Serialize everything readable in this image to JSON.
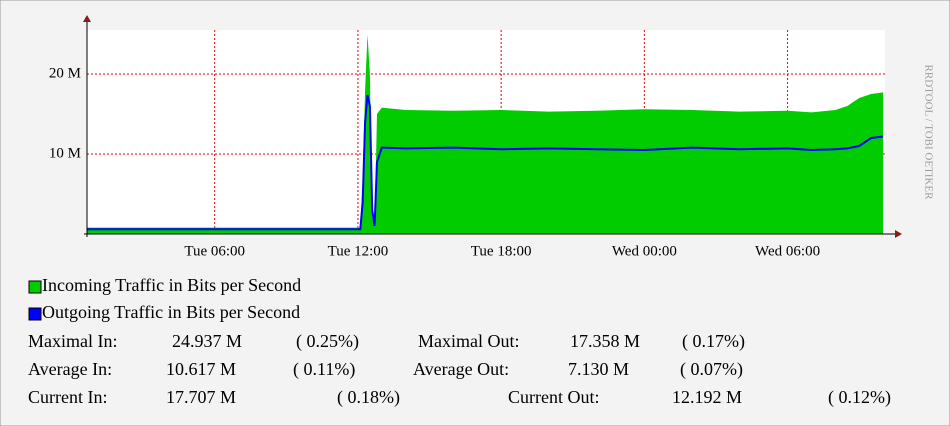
{
  "chart_data": {
    "type": "area",
    "x": [
      0.65,
      2,
      4,
      6,
      8,
      10,
      11.5,
      12.1,
      12.2,
      12.3,
      12.4,
      12.5,
      12.6,
      12.7,
      12.8,
      13,
      14,
      16,
      18,
      20,
      22,
      24,
      26,
      28,
      30,
      31,
      32,
      32.5,
      33,
      33.5,
      34
    ],
    "series": [
      {
        "name": "Incoming Traffic in Bits per Second",
        "color": "#00cc00",
        "values": [
          0.8,
          0.8,
          0.8,
          0.8,
          0.8,
          0.8,
          0.8,
          0.8,
          7,
          18,
          24.9,
          20,
          2,
          1,
          15,
          15.8,
          15.5,
          15.4,
          15.5,
          15.3,
          15.4,
          15.6,
          15.5,
          15.3,
          15.4,
          15.2,
          15.5,
          16,
          17,
          17.5,
          17.7
        ]
      },
      {
        "name": "Outgoing Traffic in Bits per Second",
        "color": "#0000ff",
        "values": [
          0.6,
          0.6,
          0.6,
          0.6,
          0.6,
          0.6,
          0.6,
          0.6,
          4,
          14,
          17.358,
          16,
          3,
          1,
          9,
          10.8,
          10.7,
          10.8,
          10.6,
          10.7,
          10.6,
          10.5,
          10.8,
          10.6,
          10.7,
          10.5,
          10.6,
          10.7,
          11,
          12,
          12.192
        ]
      }
    ],
    "xlim": [
      0.65,
      34.5
    ],
    "xticks": [
      {
        "value": 6,
        "label": "Tue 06:00"
      },
      {
        "value": 12,
        "label": "Tue 12:00"
      },
      {
        "value": 18,
        "label": "Tue 18:00"
      },
      {
        "value": 24,
        "label": "Wed 00:00"
      },
      {
        "value": 30,
        "label": "Wed 06:00"
      }
    ],
    "ylim": [
      0,
      25.5
    ],
    "yticks": [
      {
        "value": 10,
        "label": "10 M"
      },
      {
        "value": 20,
        "label": "20 M"
      }
    ],
    "grid": true,
    "side_label": "RRDTOOL / TOBI OETIKER",
    "stats": [
      [
        "Maximal In:",
        "24.937 M",
        "( 0.25%)",
        "Maximal Out:",
        "17.358 M",
        "( 0.17%)"
      ],
      [
        "Average In:",
        "10.617 M",
        "( 0.11%)",
        "Average Out:",
        "7.130 M",
        "( 0.07%)"
      ],
      [
        "Current In:",
        "17.707 M",
        "( 0.18%)",
        "Current Out:",
        "12.192 M",
        "( 0.12%)"
      ]
    ]
  }
}
